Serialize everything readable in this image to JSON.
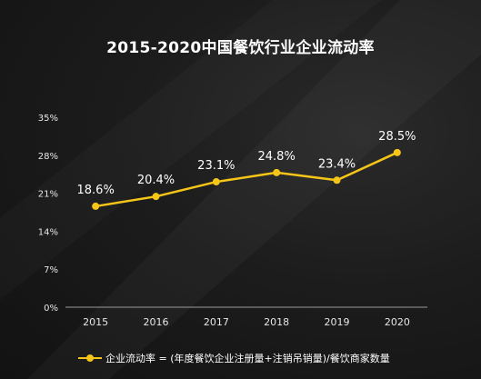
{
  "chart_data": {
    "type": "line",
    "title": "2015-2020中国餐饮行业企业流动率",
    "categories": [
      "2015",
      "2016",
      "2017",
      "2018",
      "2019",
      "2020"
    ],
    "series": [
      {
        "name": "企业流动率 = (年度餐饮企业注册量+注销吊销量)/餐饮商家数量",
        "values": [
          18.6,
          20.4,
          23.1,
          24.8,
          23.4,
          28.5
        ],
        "labels": [
          "18.6%",
          "20.4%",
          "23.1%",
          "24.8%",
          "23.4%",
          "28.5%"
        ]
      }
    ],
    "y_ticks": [
      "0%",
      "7%",
      "14%",
      "21%",
      "28%",
      "35%"
    ],
    "ylim": [
      0,
      35
    ],
    "xlabel": "",
    "ylabel": "",
    "grid": false,
    "legend_position": "bottom-left",
    "line_color": "#f5c518"
  }
}
